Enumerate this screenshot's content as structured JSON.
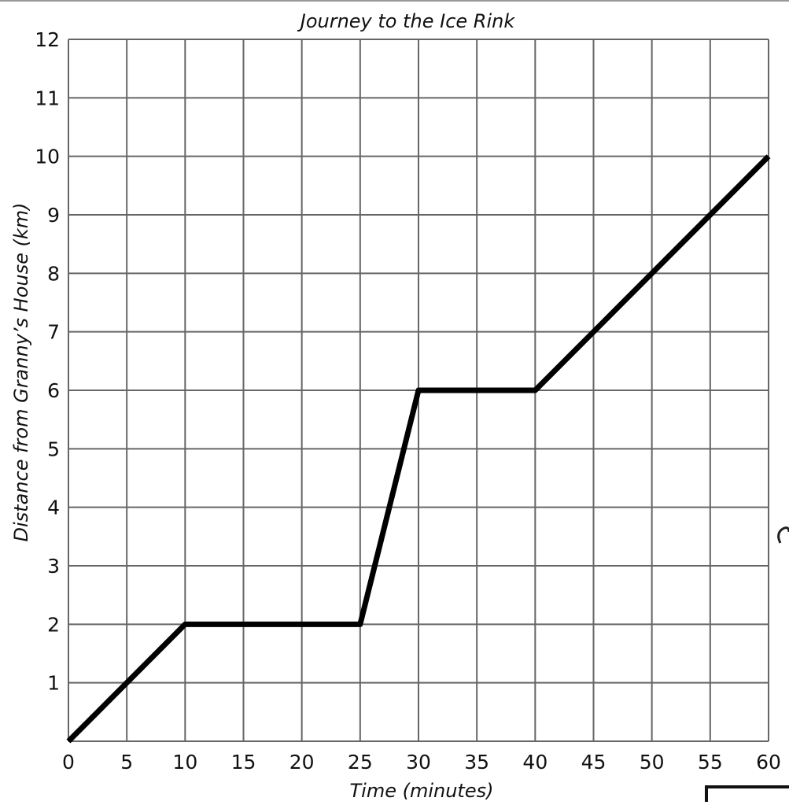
{
  "chart_data": {
    "type": "line",
    "title": "Journey to the Ice Rink",
    "xlabel": "Time (minutes)",
    "ylabel": "Distance from Granny’s House (km)",
    "xlim": [
      0,
      60
    ],
    "ylim": [
      0,
      12
    ],
    "grid": true,
    "xticks": [
      "0",
      "5",
      "10",
      "15",
      "20",
      "25",
      "30",
      "35",
      "40",
      "45",
      "50",
      "55",
      "60"
    ],
    "yticks": [
      "1",
      "2",
      "3",
      "4",
      "5",
      "6",
      "7",
      "8",
      "9",
      "10",
      "11",
      "12"
    ],
    "series": [
      {
        "x": [
          0,
          10,
          25,
          30,
          40,
          60
        ],
        "y": [
          0,
          2,
          2,
          6,
          6,
          10
        ],
        "color": "#000000"
      }
    ]
  }
}
